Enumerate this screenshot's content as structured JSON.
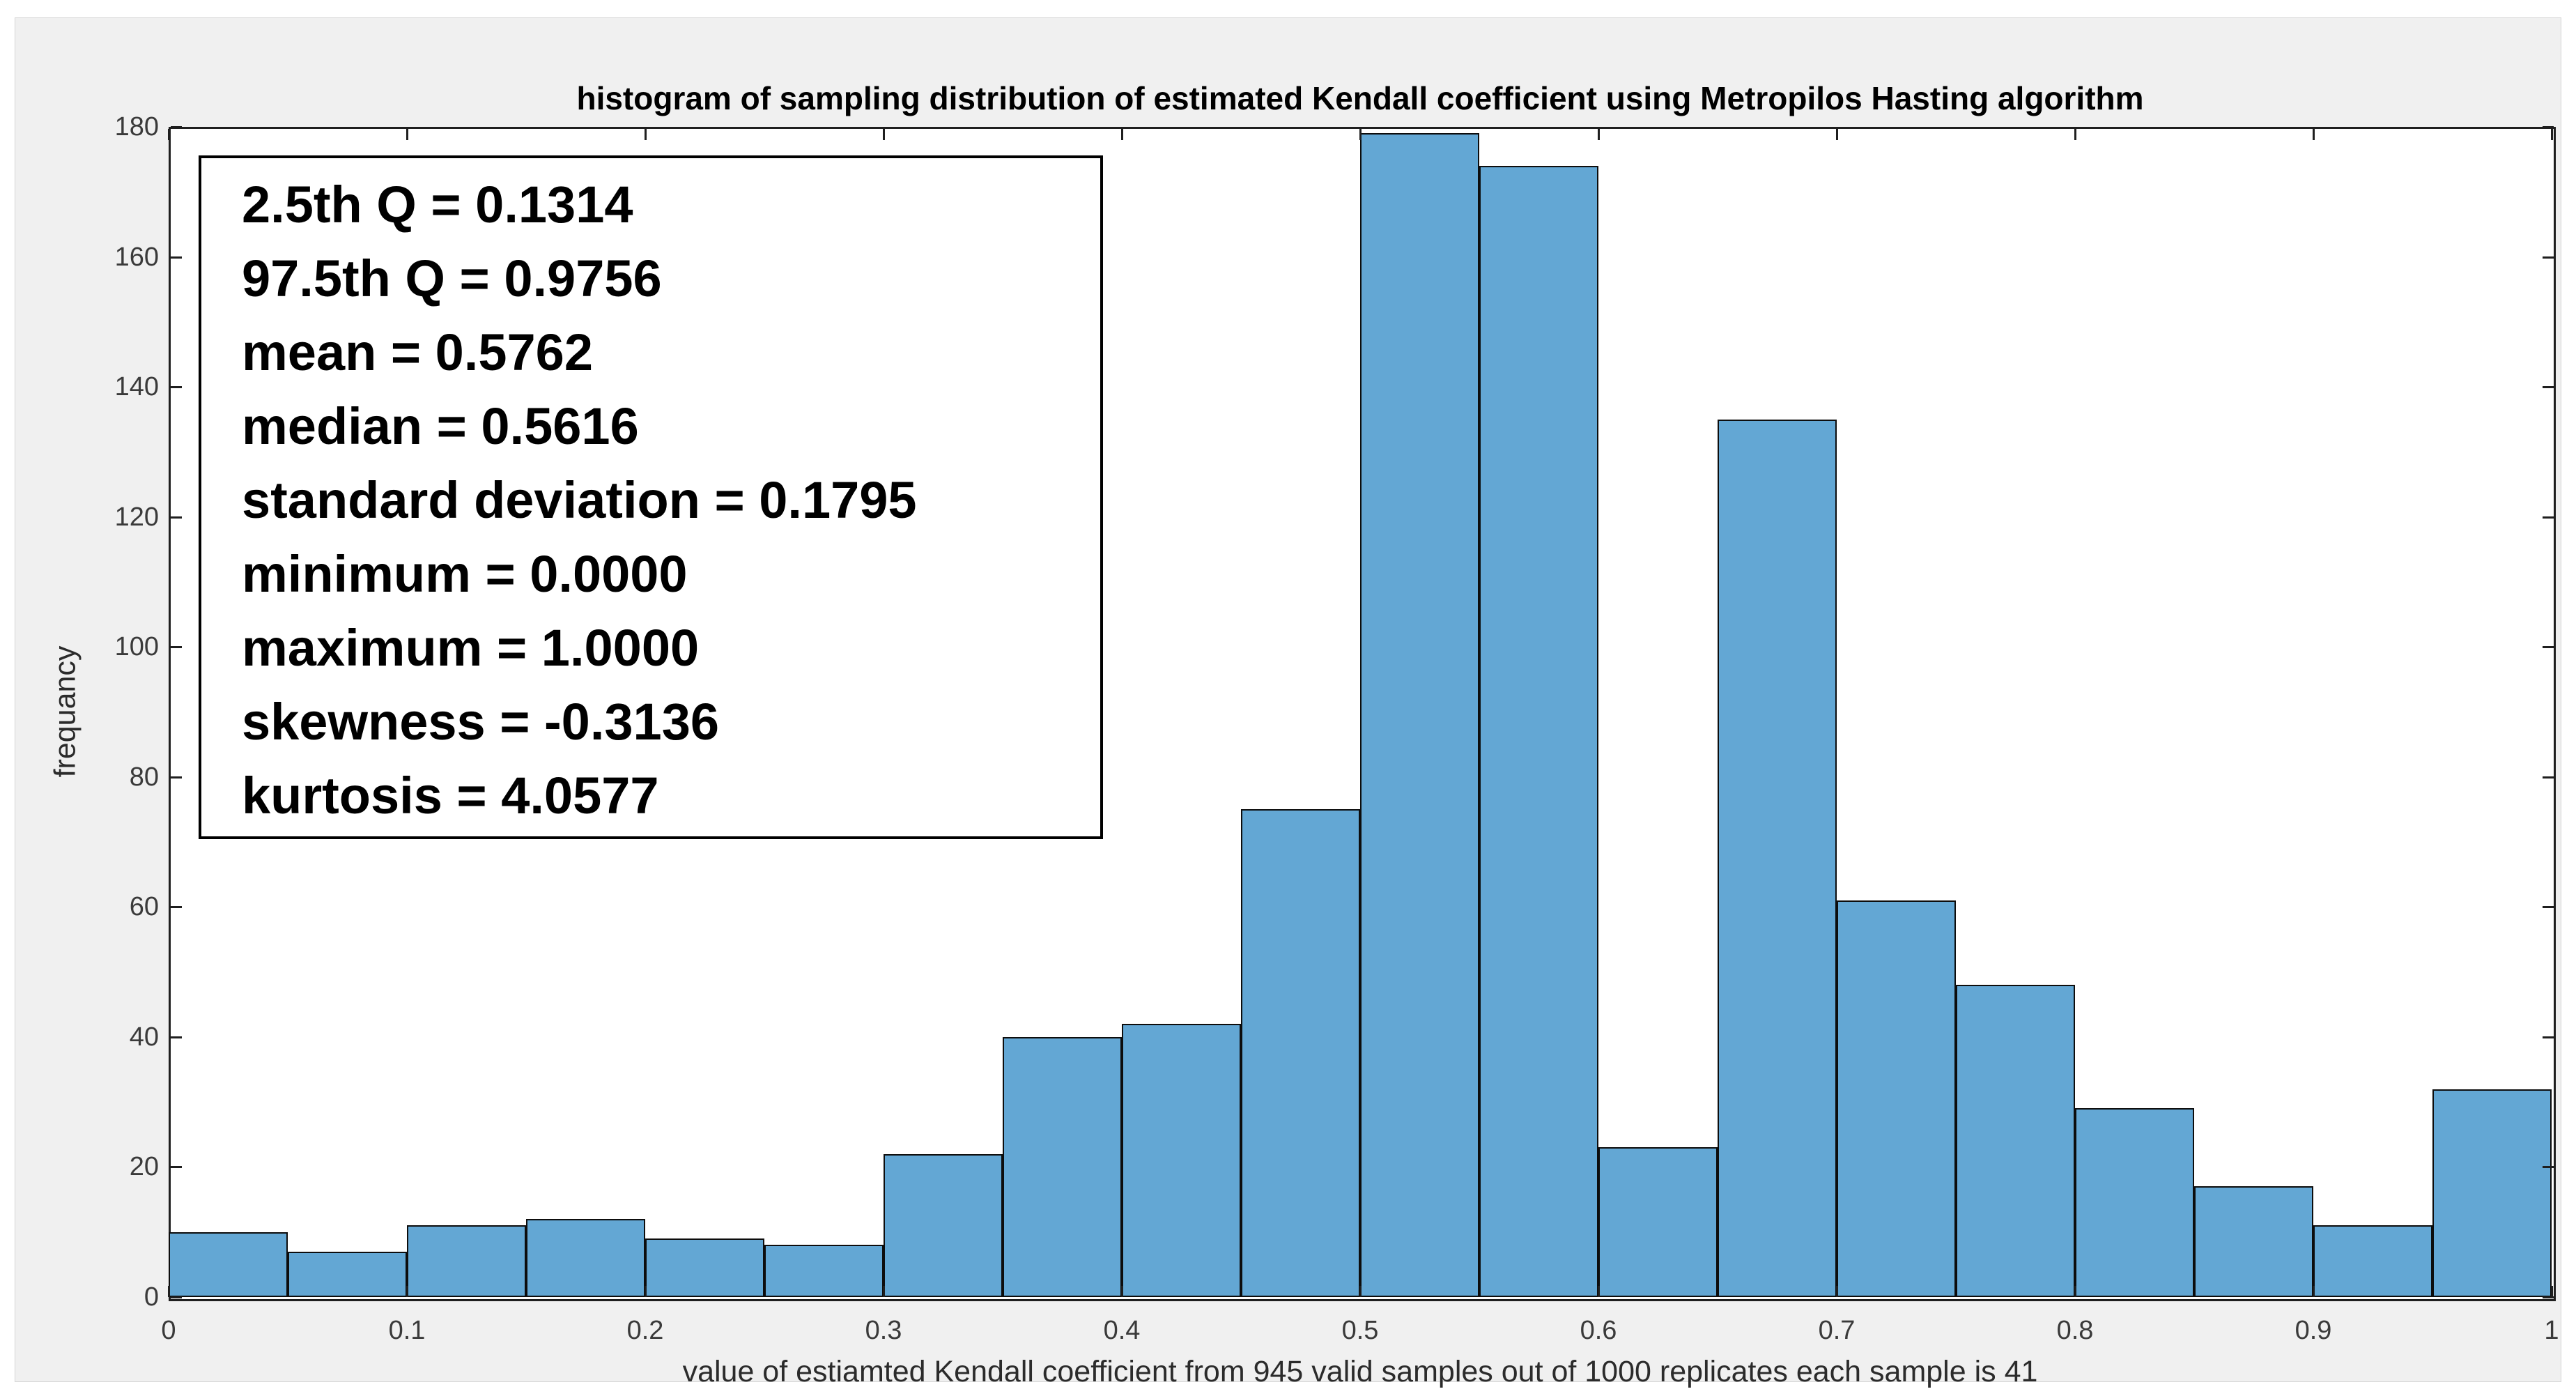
{
  "figure": {
    "title": "histogram of sampling distribution of estimated Kendall coefficient using Metropilos Hasting algorithm",
    "stats_box": {
      "lines": [
        "2.5th Q = 0.1314",
        "97.5th Q = 0.9756",
        "mean = 0.5762",
        "median = 0.5616",
        "standard deviation = 0.1795",
        "minimum = 0.0000",
        "maximum = 1.0000",
        "skewness = -0.3136",
        "kurtosis = 4.0577"
      ]
    },
    "axes": {
      "xlabel": "value of estiamted Kendall coefficient from 945 valid samples out of 1000 replicates each sample is 41",
      "ylabel": "frequancy",
      "x_tick_labels": [
        "0",
        "0.1",
        "0.2",
        "0.3",
        "0.4",
        "0.5",
        "0.6",
        "0.7",
        "0.8",
        "0.9",
        "1"
      ],
      "y_tick_labels": [
        "0",
        "20",
        "40",
        "60",
        "80",
        "100",
        "120",
        "140",
        "160",
        "180"
      ]
    }
  },
  "colors": {
    "figure_bg": "#f0f0f0",
    "axes_bg": "#ffffff",
    "bar_fill": "#63a7d4",
    "bar_edge": "#0d0d0d",
    "axis_line": "#1f1f1f",
    "tick_text": "#3a3a3a",
    "text": "#000000"
  },
  "chart_data": {
    "type": "bar",
    "subtype": "histogram",
    "title": "histogram of sampling distribution of estimated Kendall coefficient using Metropilos Hasting algorithm",
    "xlabel": "value of estiamted Kendall coefficient from 945 valid samples out of 1000 replicates each sample is 41",
    "ylabel": "frequancy",
    "xlim": [
      0,
      1
    ],
    "ylim": [
      0,
      180
    ],
    "x_ticks": [
      0,
      0.1,
      0.2,
      0.3,
      0.4,
      0.5,
      0.6,
      0.7,
      0.8,
      0.9,
      1
    ],
    "y_ticks": [
      0,
      20,
      40,
      60,
      80,
      100,
      120,
      140,
      160,
      180
    ],
    "bin_width": 0.05,
    "bin_edges": [
      0,
      0.05,
      0.1,
      0.15,
      0.2,
      0.25,
      0.3,
      0.35,
      0.4,
      0.45,
      0.5,
      0.55,
      0.6,
      0.65,
      0.7,
      0.75,
      0.8,
      0.85,
      0.9,
      0.95,
      1.0
    ],
    "values": [
      10,
      7,
      11,
      12,
      9,
      8,
      22,
      40,
      42,
      75,
      179,
      174,
      23,
      135,
      61,
      48,
      29,
      17,
      11,
      32
    ],
    "total_count": 945,
    "grid": false,
    "legend": false
  }
}
